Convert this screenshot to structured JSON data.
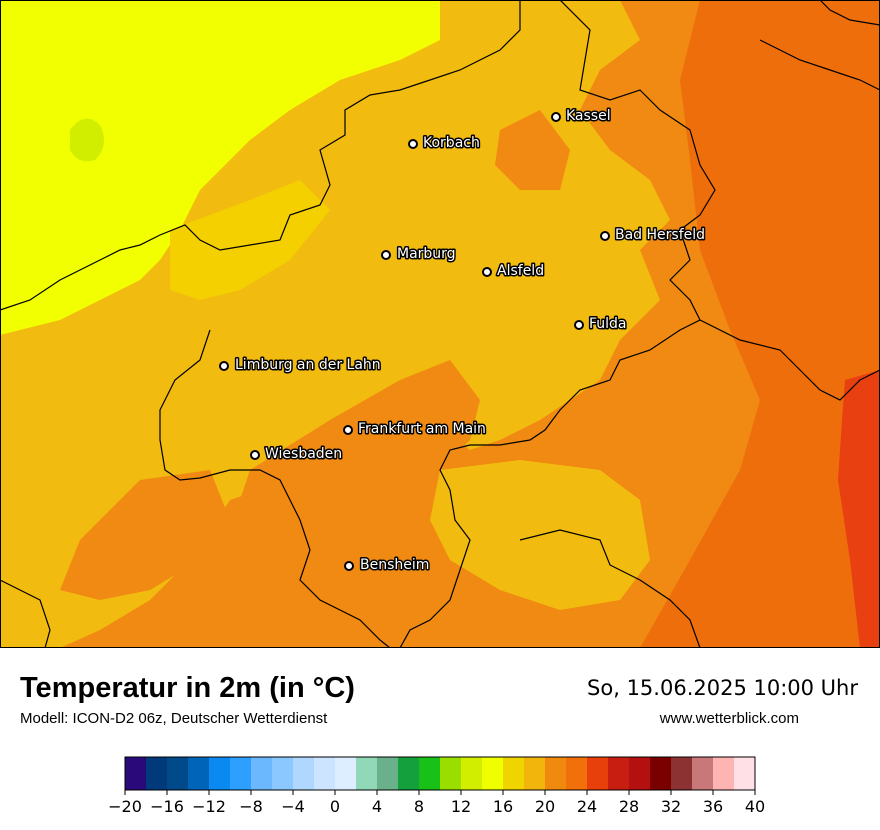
{
  "header": {
    "title": "Temperatur in 2m (in °C)",
    "subtitle": "Modell: ICON-D2 06z, Deutscher Wetterdienst",
    "datetime": "So, 15.06.2025 10:00 Uhr",
    "website": "www.wetterblick.com"
  },
  "cities": [
    {
      "name": "Kassel"
    },
    {
      "name": "Korbach"
    },
    {
      "name": "Bad Hersfeld"
    },
    {
      "name": "Marburg"
    },
    {
      "name": "Alsfeld"
    },
    {
      "name": "Fulda"
    },
    {
      "name": "Limburg an der Lahn"
    },
    {
      "name": "Frankfurt am Main"
    },
    {
      "name": "Wiesbaden"
    },
    {
      "name": "Bensheim"
    }
  ],
  "legend": {
    "min": -20,
    "max": 40,
    "step": 2,
    "tick_labels": [
      "−20",
      "−16",
      "−12",
      "−8",
      "−4",
      "0",
      "4",
      "8",
      "12",
      "16",
      "20",
      "24",
      "28",
      "32",
      "36",
      "40"
    ],
    "colors": [
      "#2a0a7a",
      "#003a7a",
      "#004a8a",
      "#0065b8",
      "#0a8af0",
      "#2da0ff",
      "#6cb8ff",
      "#8ac8ff",
      "#b0d8ff",
      "#cce4ff",
      "#dceeff",
      "#90d8b8",
      "#6ab08a",
      "#14a03c",
      "#18c018",
      "#9ade00",
      "#d2ee00",
      "#f0ff00",
      "#f0d400",
      "#f2b50c",
      "#f08a0f",
      "#f2700a",
      "#e8400a",
      "#c81e12",
      "#b41010",
      "#7a0000",
      "#8c3232",
      "#c87878",
      "#ffb4b4",
      "#ffe0e6"
    ]
  },
  "colors": {
    "yellow": "#f2ff00",
    "gold": "#f2bb0f",
    "orange": "#f08a12",
    "deep_orange": "#ee6e0c",
    "red_orange": "#e84010",
    "border": "#000000"
  }
}
